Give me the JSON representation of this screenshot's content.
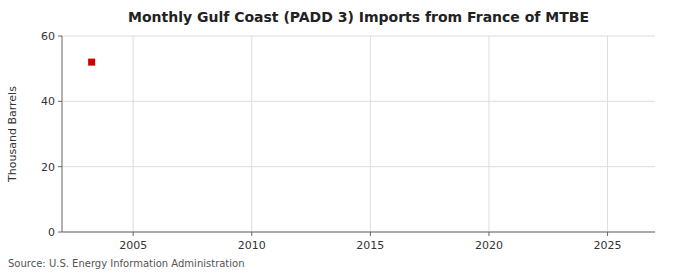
{
  "chart_data": {
    "type": "scatter",
    "title": "Monthly Gulf Coast (PADD 3) Imports from France of MTBE",
    "ylabel": "Thousand Barrels",
    "source": "Source: U.S. Energy Information Administration",
    "x": [
      2003.25
    ],
    "values": [
      52
    ],
    "color": "#cc0000",
    "marker": "square",
    "xlim": [
      2002,
      2027
    ],
    "xticks": [
      2005,
      2010,
      2015,
      2020,
      2025
    ],
    "ylim": [
      0,
      60
    ],
    "yticks": [
      0,
      20,
      40,
      60
    ],
    "grid": true
  }
}
